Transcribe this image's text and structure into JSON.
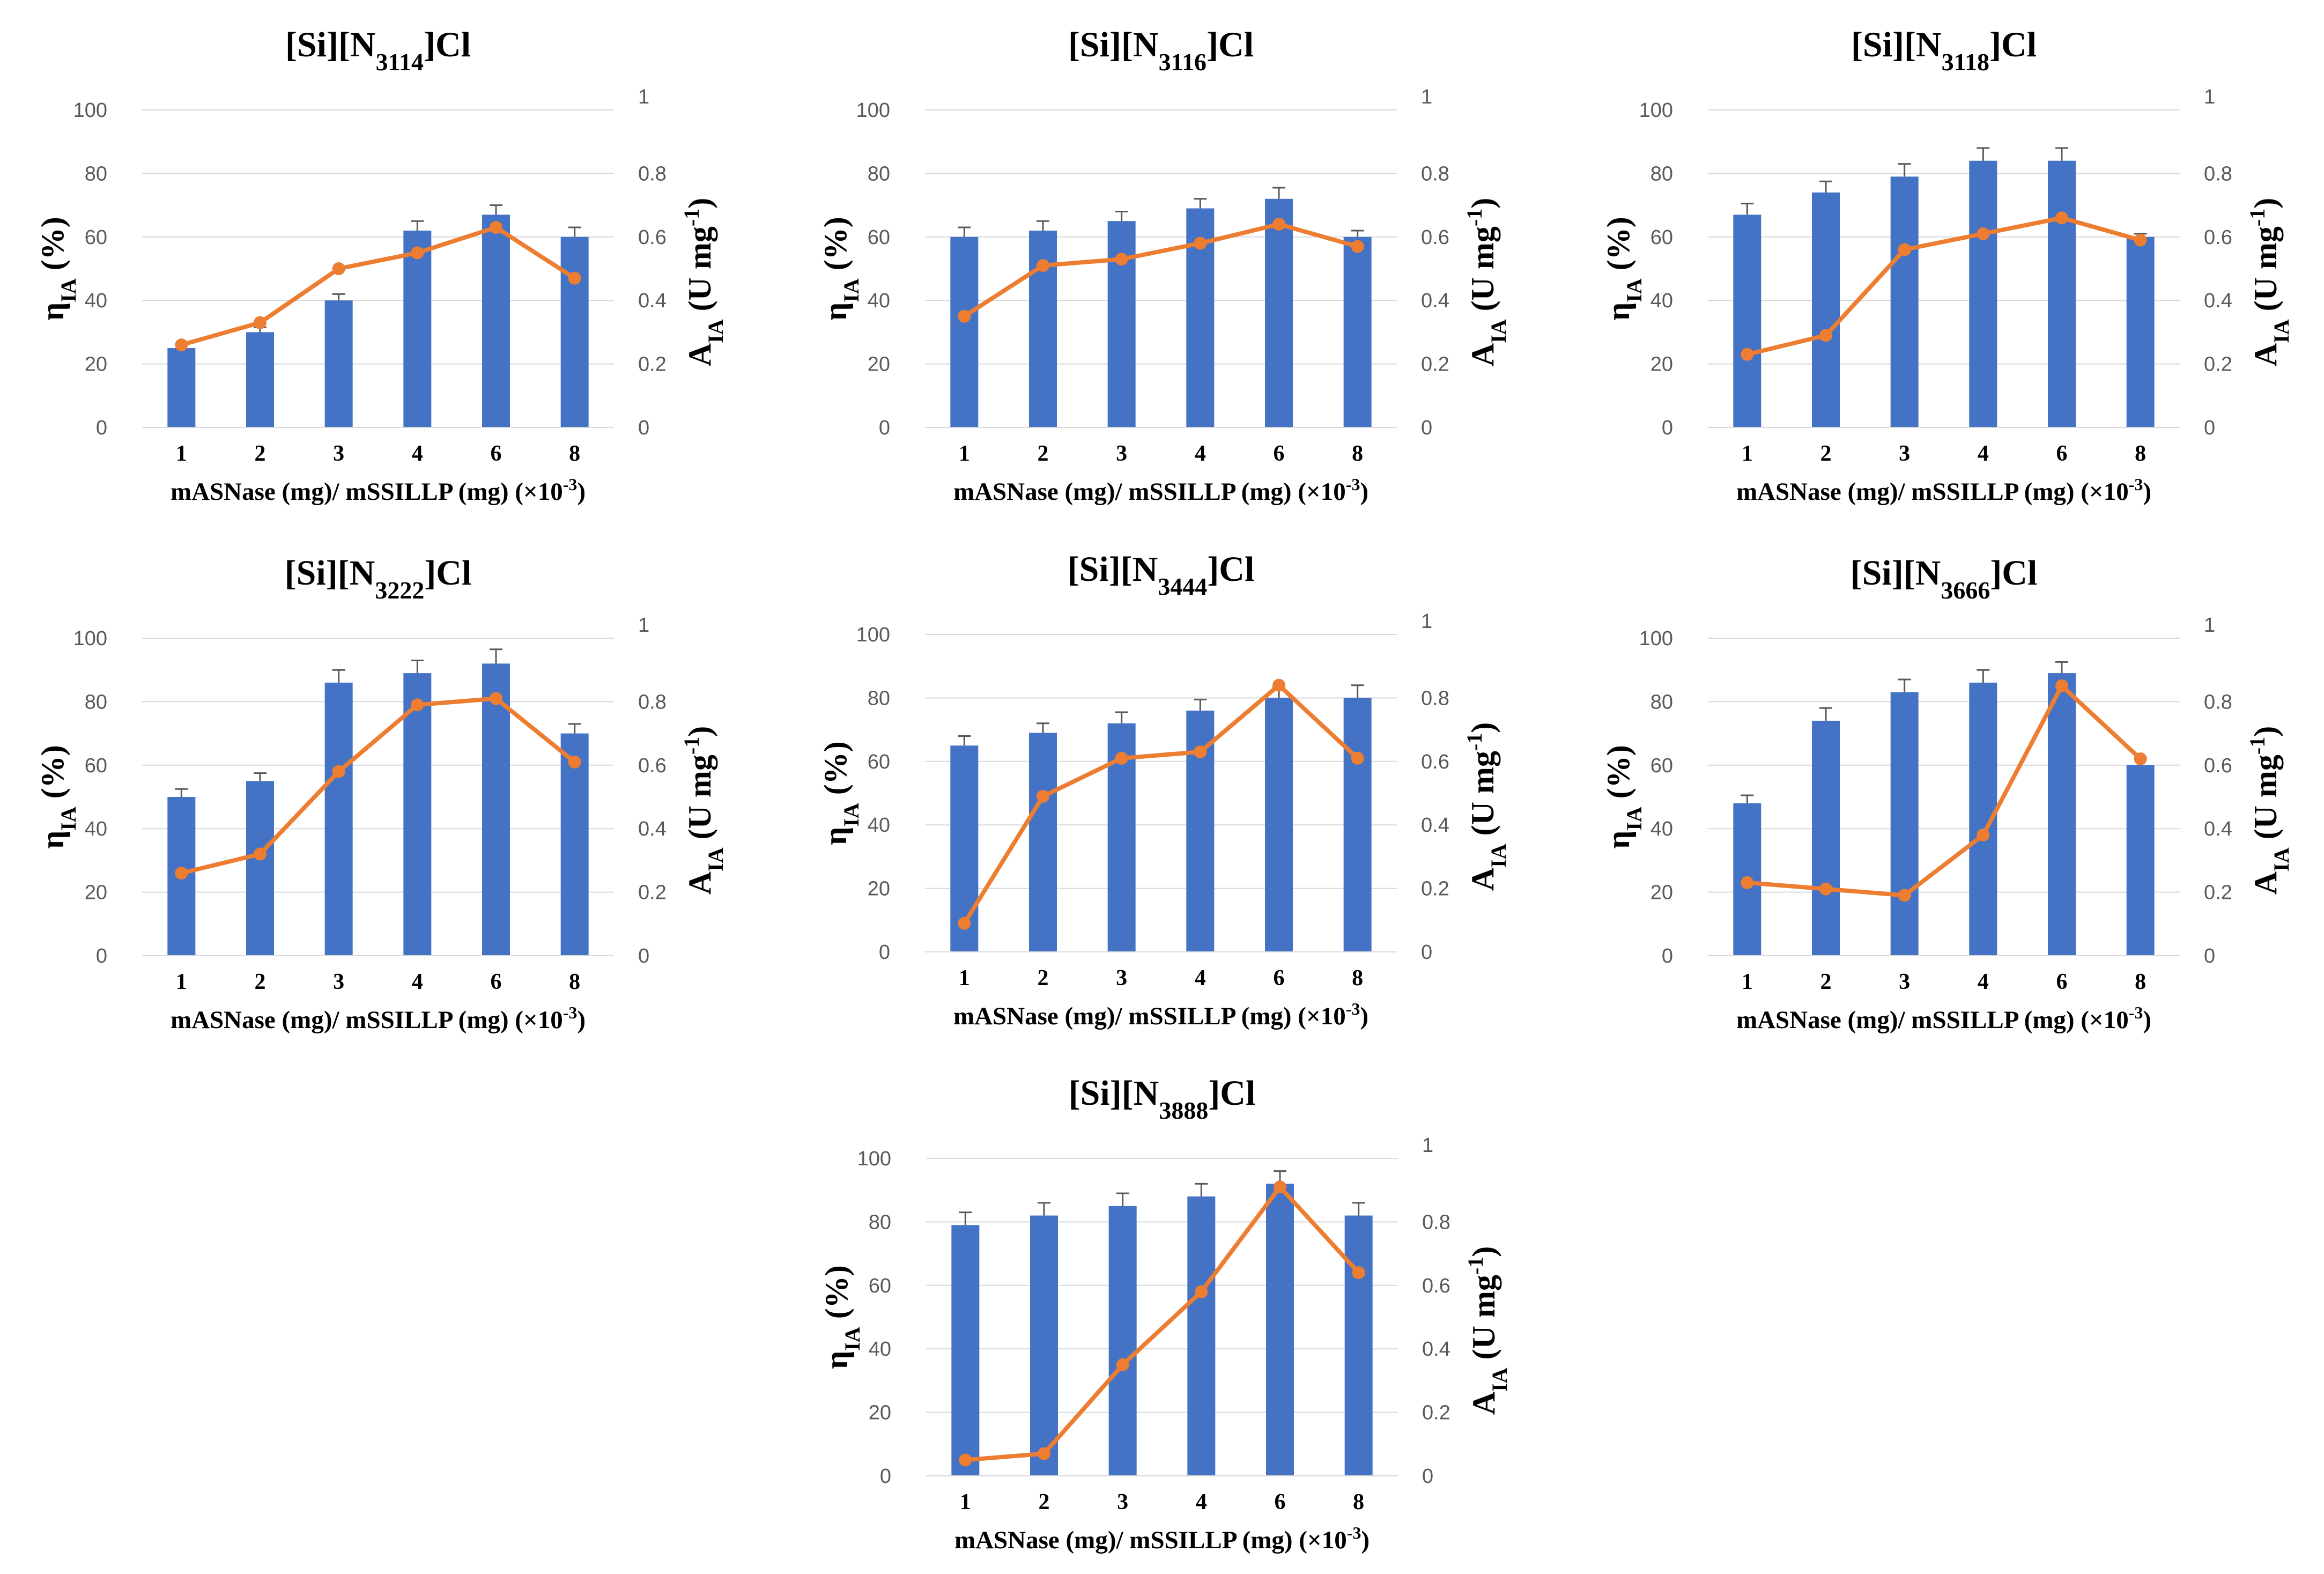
{
  "figure": {
    "colors": {
      "bar": "#4472C4",
      "line": "#ED7D31",
      "grid": "#D9D9D9",
      "error": "#595959",
      "tick": "#595959"
    }
  },
  "chart_data": [
    {
      "type": "bar",
      "title": {
        "prefix": "[Si][N",
        "sub": "3114",
        "suffix": "]Cl"
      },
      "categories": [
        "1",
        "2",
        "3",
        "4",
        "6",
        "8"
      ],
      "series": [
        {
          "name": "ηIA (%)",
          "axis": "left",
          "kind": "bar",
          "values": [
            25,
            30,
            40,
            62,
            67,
            60
          ],
          "errors": [
            0,
            1.5,
            2,
            3,
            3,
            3
          ]
        },
        {
          "name": "AIA (U mg-1)",
          "axis": "right",
          "kind": "line",
          "values": [
            0.26,
            0.33,
            0.5,
            0.55,
            0.63,
            0.47
          ]
        }
      ],
      "ylim": [
        0,
        100
      ],
      "y2lim": [
        0,
        1
      ],
      "yticks": [
        "0",
        "20",
        "40",
        "60",
        "80",
        "100"
      ],
      "y2ticks": [
        "0",
        "0.2",
        "0.4",
        "0.6",
        "0.8",
        "1"
      ],
      "xlabel": {
        "main": "mASNase (mg)/ mSSILLP (mg) (×10",
        "sup": "-3",
        "end": ")"
      },
      "ylabel": {
        "main": "η",
        "sub": "IA",
        "end": " (%)"
      },
      "y2label": {
        "main": "A",
        "sub": "IA",
        "mid": " (U mg",
        "sup": "-1",
        "end": ")"
      }
    },
    {
      "type": "bar",
      "title": {
        "prefix": "[Si][N",
        "sub": "3116",
        "suffix": "]Cl"
      },
      "categories": [
        "1",
        "2",
        "3",
        "4",
        "6",
        "8"
      ],
      "series": [
        {
          "name": "ηIA (%)",
          "axis": "left",
          "kind": "bar",
          "values": [
            60,
            62,
            65,
            69,
            72,
            60
          ],
          "errors": [
            3,
            3,
            3,
            3,
            3.5,
            2
          ]
        },
        {
          "name": "AIA (U mg-1)",
          "axis": "right",
          "kind": "line",
          "values": [
            0.35,
            0.51,
            0.53,
            0.58,
            0.64,
            0.57
          ]
        }
      ],
      "ylim": [
        0,
        100
      ],
      "y2lim": [
        0,
        1
      ],
      "yticks": [
        "0",
        "20",
        "40",
        "60",
        "80",
        "100"
      ],
      "y2ticks": [
        "0",
        "0.2",
        "0.4",
        "0.6",
        "0.8",
        "1"
      ],
      "xlabel": {
        "main": "mASNase (mg)/ mSSILLP (mg) (×10",
        "sup": "-3",
        "end": ")"
      },
      "ylabel": {
        "main": "η",
        "sub": "IA",
        "end": " (%)"
      },
      "y2label": {
        "main": "A",
        "sub": "IA",
        "mid": " (U mg",
        "sup": "-1",
        "end": ")"
      }
    },
    {
      "type": "bar",
      "title": {
        "prefix": "[Si][N",
        "sub": "3118",
        "suffix": "]Cl"
      },
      "categories": [
        "1",
        "2",
        "3",
        "4",
        "6",
        "8"
      ],
      "series": [
        {
          "name": "ηIA (%)",
          "axis": "left",
          "kind": "bar",
          "values": [
            67,
            74,
            79,
            84,
            84,
            60
          ],
          "errors": [
            3.5,
            3.5,
            4,
            4,
            4,
            1
          ]
        },
        {
          "name": "AIA (U mg-1)",
          "axis": "right",
          "kind": "line",
          "values": [
            0.23,
            0.29,
            0.56,
            0.61,
            0.66,
            0.59
          ]
        }
      ],
      "ylim": [
        0,
        100
      ],
      "y2lim": [
        0,
        1
      ],
      "yticks": [
        "0",
        "20",
        "40",
        "60",
        "80",
        "100"
      ],
      "y2ticks": [
        "0",
        "0.2",
        "0.4",
        "0.6",
        "0.8",
        "1"
      ],
      "xlabel": {
        "main": "mASNase (mg)/ mSSILLP (mg) (×10",
        "sup": "-3",
        "end": ")"
      },
      "ylabel": {
        "main": "η",
        "sub": "IA",
        "end": " (%)"
      },
      "y2label": {
        "main": "A",
        "sub": "IA",
        "mid": " (U mg",
        "sup": "-1",
        "end": ")"
      }
    },
    {
      "type": "bar",
      "title": {
        "prefix": "[Si][N",
        "sub": "3222",
        "suffix": "]Cl"
      },
      "categories": [
        "1",
        "2",
        "3",
        "4",
        "6",
        "8"
      ],
      "series": [
        {
          "name": "ηIA (%)",
          "axis": "left",
          "kind": "bar",
          "values": [
            50,
            55,
            86,
            89,
            92,
            70
          ],
          "errors": [
            2.5,
            2.5,
            4,
            4,
            4.5,
            3
          ]
        },
        {
          "name": "AIA (U mg-1)",
          "axis": "right",
          "kind": "line",
          "values": [
            0.26,
            0.32,
            0.58,
            0.79,
            0.81,
            0.61
          ]
        }
      ],
      "ylim": [
        0,
        100
      ],
      "y2lim": [
        0,
        1
      ],
      "yticks": [
        "0",
        "20",
        "40",
        "60",
        "80",
        "100"
      ],
      "y2ticks": [
        "0",
        "0.2",
        "0.4",
        "0.6",
        "0.8",
        "1"
      ],
      "xlabel": {
        "main": "mASNase (mg)/ mSSILLP (mg) (×10",
        "sup": "-3",
        "end": ")"
      },
      "ylabel": {
        "main": "η",
        "sub": "IA",
        "end": " (%)"
      },
      "y2label": {
        "main": "A",
        "sub": "IA",
        "mid": " (U mg",
        "sup": "-1",
        "end": ")"
      }
    },
    {
      "type": "bar",
      "title": {
        "prefix": "[Si][N",
        "sub": "3444",
        "suffix": "]Cl"
      },
      "categories": [
        "1",
        "2",
        "3",
        "4",
        "6",
        "8"
      ],
      "series": [
        {
          "name": "ηIA (%)",
          "axis": "left",
          "kind": "bar",
          "values": [
            65,
            69,
            72,
            76,
            80,
            80
          ],
          "errors": [
            3,
            3,
            3.5,
            3.5,
            3.5,
            4
          ]
        },
        {
          "name": "AIA (U mg-1)",
          "axis": "right",
          "kind": "line",
          "values": [
            0.09,
            0.49,
            0.61,
            0.63,
            0.84,
            0.61
          ]
        }
      ],
      "ylim": [
        0,
        100
      ],
      "y2lim": [
        0,
        1
      ],
      "yticks": [
        "0",
        "20",
        "40",
        "60",
        "80",
        "100"
      ],
      "y2ticks": [
        "0",
        "0.2",
        "0.4",
        "0.6",
        "0.8",
        "1"
      ],
      "xlabel": {
        "main": "mASNase (mg)/ mSSILLP (mg) (×10",
        "sup": "-3",
        "end": ")"
      },
      "ylabel": {
        "main": "η",
        "sub": "IA",
        "end": " (%)"
      },
      "y2label": {
        "main": "A",
        "sub": "IA",
        "mid": " (U mg",
        "sup": "-1",
        "end": ")"
      }
    },
    {
      "type": "bar",
      "title": {
        "prefix": "[Si][N",
        "sub": "3666",
        "suffix": "]Cl"
      },
      "categories": [
        "1",
        "2",
        "3",
        "4",
        "6",
        "8"
      ],
      "series": [
        {
          "name": "ηIA (%)",
          "axis": "left",
          "kind": "bar",
          "values": [
            48,
            74,
            83,
            86,
            89,
            60
          ],
          "errors": [
            2.5,
            4,
            4,
            4,
            3.5,
            0
          ]
        },
        {
          "name": "AIA (U mg-1)",
          "axis": "right",
          "kind": "line",
          "values": [
            0.23,
            0.21,
            0.19,
            0.38,
            0.85,
            0.62
          ]
        }
      ],
      "ylim": [
        0,
        100
      ],
      "y2lim": [
        0,
        1
      ],
      "yticks": [
        "0",
        "20",
        "40",
        "60",
        "80",
        "100"
      ],
      "y2ticks": [
        "0",
        "0.2",
        "0.4",
        "0.6",
        "0.8",
        "1"
      ],
      "xlabel": {
        "main": "mASNase (mg)/ mSSILLP (mg) (×10",
        "sup": "-3",
        "end": ")"
      },
      "ylabel": {
        "main": "η",
        "sub": "IA",
        "end": " (%)"
      },
      "y2label": {
        "main": "A",
        "sub": "IA",
        "mid": " (U mg",
        "sup": "-1",
        "end": ")"
      }
    },
    {
      "type": "bar",
      "title": {
        "prefix": "[Si][N",
        "sub": "3888",
        "suffix": "]Cl"
      },
      "categories": [
        "1",
        "2",
        "3",
        "4",
        "6",
        "8"
      ],
      "series": [
        {
          "name": "ηIA (%)",
          "axis": "left",
          "kind": "bar",
          "values": [
            79,
            82,
            85,
            88,
            92,
            82
          ],
          "errors": [
            4,
            4,
            4,
            4,
            4,
            4
          ]
        },
        {
          "name": "AIA (U mg-1)",
          "axis": "right",
          "kind": "line",
          "values": [
            0.05,
            0.07,
            0.35,
            0.58,
            0.91,
            0.64
          ]
        }
      ],
      "ylim": [
        0,
        100
      ],
      "y2lim": [
        0,
        1
      ],
      "yticks": [
        "0",
        "20",
        "40",
        "60",
        "80",
        "100"
      ],
      "y2ticks": [
        "0",
        "0.2",
        "0.4",
        "0.6",
        "0.8",
        "1"
      ],
      "xlabel": {
        "main": "mASNase (mg)/ mSSILLP (mg) (×10",
        "sup": "-3",
        "end": ")"
      },
      "ylabel": {
        "main": "η",
        "sub": "IA",
        "end": " (%)"
      },
      "y2label": {
        "main": "A",
        "sub": "IA",
        "mid": " (U mg",
        "sup": "-1",
        "end": ")"
      }
    }
  ]
}
